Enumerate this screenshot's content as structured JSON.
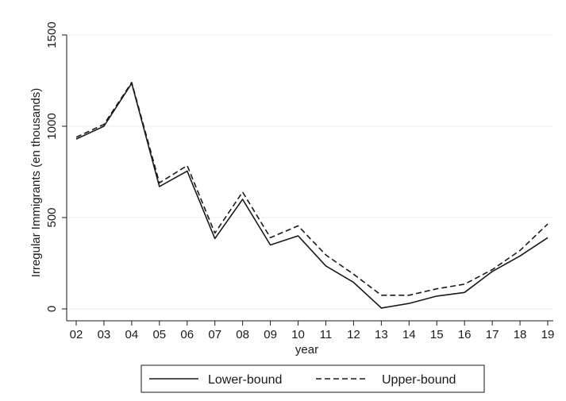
{
  "chart_data": {
    "type": "line",
    "title": "",
    "xlabel": "year",
    "ylabel": "Irregular Immigrants (en thousands)",
    "categories": [
      "02",
      "03",
      "04",
      "05",
      "06",
      "07",
      "08",
      "09",
      "10",
      "11",
      "12",
      "13",
      "14",
      "15",
      "16",
      "17",
      "18",
      "19"
    ],
    "ylim": [
      0,
      1500
    ],
    "yticks": [
      0,
      500,
      1000,
      1500
    ],
    "grid": true,
    "legend_position": "bottom",
    "series": [
      {
        "name": "Lower-bound",
        "style": "solid",
        "color": "#1a1a1a",
        "values": [
          930,
          1000,
          1235,
          670,
          755,
          385,
          600,
          350,
          400,
          235,
          145,
          5,
          30,
          70,
          90,
          205,
          290,
          390
        ]
      },
      {
        "name": "Upper-bound",
        "style": "dashed",
        "color": "#1a1a1a",
        "values": [
          940,
          1010,
          1240,
          690,
          785,
          415,
          640,
          390,
          455,
          295,
          190,
          75,
          75,
          110,
          135,
          215,
          320,
          465
        ]
      }
    ]
  }
}
